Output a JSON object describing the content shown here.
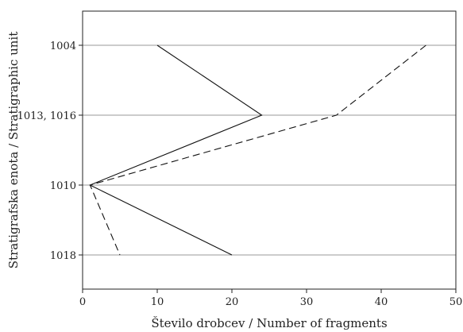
{
  "chart_data": {
    "type": "line",
    "xlabel": "Število drobcev / Number of fragments",
    "ylabel": "Stratigrafska enota / Stratigraphic unit",
    "xlim": [
      0,
      50
    ],
    "x_ticks": [
      0,
      10,
      20,
      30,
      40,
      50
    ],
    "categories": [
      "1004",
      "1013, 1016",
      "1010",
      "1018"
    ],
    "grid": "horizontal",
    "legend": "none",
    "series": [
      {
        "style": "solid",
        "color": "#111111",
        "values": [
          10,
          24,
          1,
          20
        ]
      },
      {
        "style": "dashed",
        "color": "#111111",
        "values": [
          46,
          34,
          1,
          5
        ]
      }
    ]
  }
}
